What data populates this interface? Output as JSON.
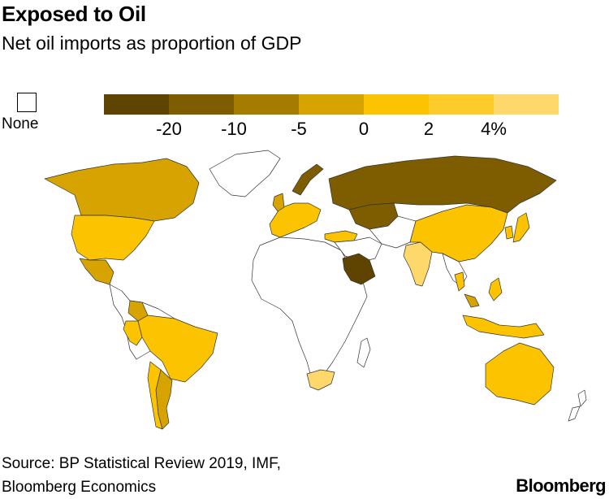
{
  "header": {
    "title": "Exposed to Oil",
    "subtitle": "Net oil imports as proportion of GDP"
  },
  "legend": {
    "none_label": "None",
    "none_color": "#ffffff",
    "colors": [
      "#5e4400",
      "#7d5d00",
      "#a57c00",
      "#d6a300",
      "#fcc300",
      "#fdcc2a",
      "#fed86a"
    ],
    "ticks": [
      "-20",
      "-10",
      "-5",
      "0",
      "2",
      "4%"
    ]
  },
  "map": {
    "regions": [
      {
        "name": "Canada",
        "color": "#d6a300"
      },
      {
        "name": "United States",
        "color": "#fcc300"
      },
      {
        "name": "Mexico",
        "color": "#d6a300"
      },
      {
        "name": "Colombia",
        "color": "#d6a300"
      },
      {
        "name": "Brazil",
        "color": "#fcc300"
      },
      {
        "name": "Argentina",
        "color": "#d6a300"
      },
      {
        "name": "Chile",
        "color": "#fcc300"
      },
      {
        "name": "Peru",
        "color": "#fcc300"
      },
      {
        "name": "Western Europe",
        "color": "#fcc300"
      },
      {
        "name": "Norway",
        "color": "#7d5d00"
      },
      {
        "name": "United Kingdom",
        "color": "#d6a300"
      },
      {
        "name": "Russia",
        "color": "#7d5d00"
      },
      {
        "name": "Kazakhstan",
        "color": "#7d5d00"
      },
      {
        "name": "Saudi Arabia",
        "color": "#5e4400"
      },
      {
        "name": "Turkey",
        "color": "#fcc300"
      },
      {
        "name": "India",
        "color": "#fed86a"
      },
      {
        "name": "China",
        "color": "#fcc300"
      },
      {
        "name": "Japan",
        "color": "#fcc300"
      },
      {
        "name": "South Korea",
        "color": "#fcc300"
      },
      {
        "name": "Indonesia",
        "color": "#fcc300"
      },
      {
        "name": "Malaysia",
        "color": "#d6a300"
      },
      {
        "name": "Thailand",
        "color": "#fcc300"
      },
      {
        "name": "Philippines",
        "color": "#fcc300"
      },
      {
        "name": "Australia",
        "color": "#fcc300"
      },
      {
        "name": "South Africa",
        "color": "#fed86a"
      },
      {
        "name": "Africa",
        "color": "#ffffff"
      },
      {
        "name": "Middle East",
        "color": "#ffffff"
      },
      {
        "name": "Greenland",
        "color": "#ffffff"
      },
      {
        "name": "Central Asia",
        "color": "#ffffff"
      },
      {
        "name": "Southeast Asia",
        "color": "#ffffff"
      },
      {
        "name": "South America",
        "color": "#ffffff"
      },
      {
        "name": "New Zealand",
        "color": "#ffffff"
      },
      {
        "name": "Madagascar",
        "color": "#ffffff"
      }
    ]
  },
  "footer": {
    "source_line1": "Source: BP Statistical Review 2019, IMF,",
    "source_line2": "Bloomberg Economics",
    "brand": "Bloomberg"
  }
}
